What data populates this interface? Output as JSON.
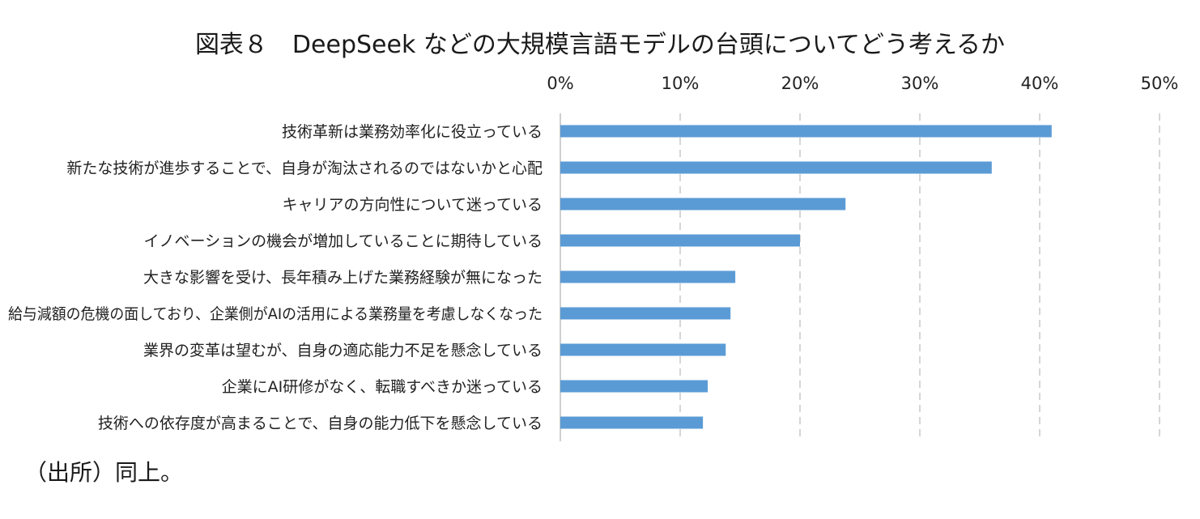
{
  "title": "図表８　DeepSeek などの大規模言語モデルの台頭についてどう考えるか",
  "source": "（出所）同上。",
  "colors": {
    "bar": "#5b9bd5",
    "grid": "#c8c8c8"
  },
  "chart_data": {
    "type": "bar",
    "orientation": "horizontal",
    "title": "図表８　DeepSeek などの大規模言語モデルの台頭についてどう考えるか",
    "xlabel": "",
    "ylabel": "",
    "xlim": [
      0,
      50
    ],
    "ticks": [
      "0%",
      "10%",
      "20%",
      "30%",
      "40%",
      "50%"
    ],
    "axis_position": "top",
    "grid": true,
    "legend": "none",
    "categories": [
      "技術革新は業務効率化に役立っている",
      "新たな技術が進歩することで、自身が淘汰されるのではないかと心配",
      "キャリアの方向性について迷っている",
      "イノベーションの機会が増加していることに期待している",
      "大きな影響を受け、長年積み上げた業務経験が無になった",
      "給与減額の危機の面しており、企業側がAIの活用による業務量を考慮しなくなった",
      "業界の変革は望むが、自身の適応能力不足を懸念している",
      "企業にAI研修がなく、転職すべきか迷っている",
      "技術への依存度が高まることで、自身の能力低下を懸念している"
    ],
    "values": [
      41.0,
      36.0,
      23.8,
      20.0,
      14.6,
      14.2,
      13.8,
      12.3,
      11.9
    ]
  }
}
